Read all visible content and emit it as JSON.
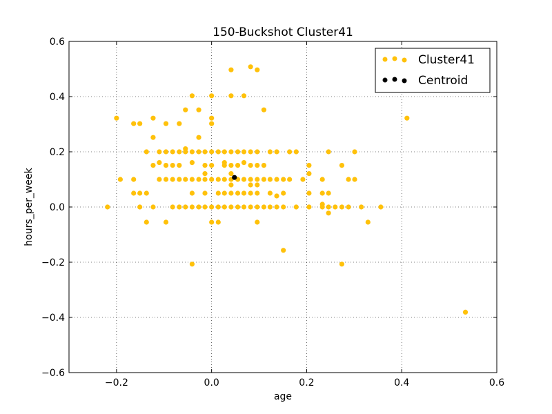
{
  "chart_data": {
    "type": "scatter",
    "title": "150-Buckshot Cluster41",
    "xlabel": "age",
    "ylabel": "hours_per_week",
    "xlim": [
      -0.3,
      0.6
    ],
    "ylim": [
      -0.6,
      0.6
    ],
    "xticks": [
      -0.2,
      0.0,
      0.2,
      0.4,
      0.6
    ],
    "xtick_labels": [
      "−0.2",
      "0.0",
      "0.2",
      "0.4",
      "0.6"
    ],
    "yticks": [
      -0.6,
      -0.4,
      -0.2,
      0.0,
      0.2,
      0.4,
      0.6
    ],
    "ytick_labels": [
      "−0.6",
      "−0.4",
      "−0.2",
      "0.0",
      "0.2",
      "0.4",
      "0.6"
    ],
    "grid": true,
    "legend_position": "top-right",
    "series": [
      {
        "name": "Cluster41",
        "color": "#ffc10a",
        "points": [
          [
            -0.219,
            0.0
          ],
          [
            -0.2,
            0.322
          ],
          [
            -0.192,
            0.1
          ],
          [
            -0.164,
            0.302
          ],
          [
            -0.164,
            0.1
          ],
          [
            -0.164,
            0.05
          ],
          [
            -0.151,
            0.302
          ],
          [
            -0.151,
            0.05
          ],
          [
            -0.151,
            0.0
          ],
          [
            -0.137,
            0.2
          ],
          [
            -0.137,
            0.05
          ],
          [
            -0.137,
            -0.055
          ],
          [
            -0.123,
            0.322
          ],
          [
            -0.123,
            0.252
          ],
          [
            -0.123,
            0.151
          ],
          [
            -0.123,
            0.0
          ],
          [
            -0.11,
            0.2
          ],
          [
            -0.11,
            0.161
          ],
          [
            -0.11,
            0.1
          ],
          [
            -0.096,
            0.302
          ],
          [
            -0.096,
            0.2
          ],
          [
            -0.096,
            0.151
          ],
          [
            -0.096,
            0.1
          ],
          [
            -0.096,
            -0.055
          ],
          [
            -0.082,
            0.2
          ],
          [
            -0.082,
            0.151
          ],
          [
            -0.082,
            0.1
          ],
          [
            -0.082,
            0.0
          ],
          [
            -0.068,
            0.302
          ],
          [
            -0.068,
            0.2
          ],
          [
            -0.068,
            0.151
          ],
          [
            -0.068,
            0.1
          ],
          [
            -0.068,
            0.0
          ],
          [
            -0.055,
            0.352
          ],
          [
            -0.055,
            0.211
          ],
          [
            -0.055,
            0.2
          ],
          [
            -0.055,
            0.1
          ],
          [
            -0.055,
            0.0
          ],
          [
            -0.041,
            0.403
          ],
          [
            -0.041,
            0.2
          ],
          [
            -0.041,
            0.161
          ],
          [
            -0.041,
            0.1
          ],
          [
            -0.041,
            0.05
          ],
          [
            -0.041,
            0.0
          ],
          [
            -0.041,
            -0.207
          ],
          [
            -0.027,
            0.352
          ],
          [
            -0.027,
            0.252
          ],
          [
            -0.027,
            0.2
          ],
          [
            -0.027,
            0.1
          ],
          [
            -0.027,
            0.0
          ],
          [
            -0.014,
            0.2
          ],
          [
            -0.014,
            0.151
          ],
          [
            -0.014,
            0.121
          ],
          [
            -0.014,
            0.1
          ],
          [
            -0.014,
            0.05
          ],
          [
            -0.014,
            0.0
          ],
          [
            0.0,
            0.403
          ],
          [
            0.0,
            0.322
          ],
          [
            0.0,
            0.302
          ],
          [
            0.0,
            0.2
          ],
          [
            0.0,
            0.151
          ],
          [
            0.0,
            0.1
          ],
          [
            0.0,
            0.0
          ],
          [
            0.0,
            -0.055
          ],
          [
            0.014,
            0.2
          ],
          [
            0.014,
            0.1
          ],
          [
            0.014,
            0.05
          ],
          [
            0.014,
            0.0
          ],
          [
            0.014,
            -0.055
          ],
          [
            0.027,
            0.2
          ],
          [
            0.027,
            0.161
          ],
          [
            0.027,
            0.151
          ],
          [
            0.027,
            0.1
          ],
          [
            0.027,
            0.05
          ],
          [
            0.027,
            0.0
          ],
          [
            0.041,
            0.497
          ],
          [
            0.041,
            0.403
          ],
          [
            0.041,
            0.2
          ],
          [
            0.041,
            0.151
          ],
          [
            0.041,
            0.121
          ],
          [
            0.041,
            0.1
          ],
          [
            0.041,
            0.08
          ],
          [
            0.041,
            0.05
          ],
          [
            0.041,
            0.0
          ],
          [
            0.055,
            0.2
          ],
          [
            0.055,
            0.151
          ],
          [
            0.055,
            0.1
          ],
          [
            0.055,
            0.05
          ],
          [
            0.055,
            0.0
          ],
          [
            0.068,
            0.403
          ],
          [
            0.068,
            0.2
          ],
          [
            0.068,
            0.161
          ],
          [
            0.068,
            0.1
          ],
          [
            0.068,
            0.05
          ],
          [
            0.068,
            0.0
          ],
          [
            0.082,
            0.508
          ],
          [
            0.082,
            0.2
          ],
          [
            0.082,
            0.151
          ],
          [
            0.082,
            0.1
          ],
          [
            0.082,
            0.08
          ],
          [
            0.082,
            0.05
          ],
          [
            0.082,
            0.0
          ],
          [
            0.096,
            0.497
          ],
          [
            0.096,
            0.2
          ],
          [
            0.096,
            0.151
          ],
          [
            0.096,
            0.1
          ],
          [
            0.096,
            0.08
          ],
          [
            0.096,
            0.05
          ],
          [
            0.096,
            0.0
          ],
          [
            0.096,
            -0.055
          ],
          [
            0.11,
            0.352
          ],
          [
            0.11,
            0.151
          ],
          [
            0.11,
            0.1
          ],
          [
            0.11,
            0.0
          ],
          [
            0.123,
            0.2
          ],
          [
            0.123,
            0.1
          ],
          [
            0.123,
            0.05
          ],
          [
            0.123,
            0.0
          ],
          [
            0.137,
            0.2
          ],
          [
            0.137,
            0.1
          ],
          [
            0.137,
            0.04
          ],
          [
            0.137,
            0.0
          ],
          [
            0.151,
            0.1
          ],
          [
            0.151,
            0.05
          ],
          [
            0.151,
            0.0
          ],
          [
            0.151,
            -0.157
          ],
          [
            0.164,
            0.2
          ],
          [
            0.164,
            0.1
          ],
          [
            0.178,
            0.2
          ],
          [
            0.178,
            0.0
          ],
          [
            0.192,
            0.1
          ],
          [
            0.205,
            0.151
          ],
          [
            0.205,
            0.121
          ],
          [
            0.205,
            0.05
          ],
          [
            0.205,
            0.0
          ],
          [
            0.233,
            0.1
          ],
          [
            0.233,
            0.05
          ],
          [
            0.233,
            0.0
          ],
          [
            0.233,
            0.01
          ],
          [
            0.246,
            0.2
          ],
          [
            0.246,
            0.05
          ],
          [
            0.246,
            0.0
          ],
          [
            0.246,
            -0.022
          ],
          [
            0.26,
            0.0
          ],
          [
            0.274,
            0.151
          ],
          [
            0.274,
            0.0
          ],
          [
            0.274,
            -0.207
          ],
          [
            0.288,
            0.1
          ],
          [
            0.288,
            0.0
          ],
          [
            0.301,
            0.2
          ],
          [
            0.301,
            0.1
          ],
          [
            0.315,
            0.0
          ],
          [
            0.329,
            -0.055
          ],
          [
            0.356,
            0.0
          ],
          [
            0.411,
            0.322
          ],
          [
            0.534,
            -0.381
          ]
        ]
      },
      {
        "name": "Centroid",
        "color": "#000000",
        "points": [
          [
            0.048,
            0.107
          ]
        ]
      }
    ]
  }
}
